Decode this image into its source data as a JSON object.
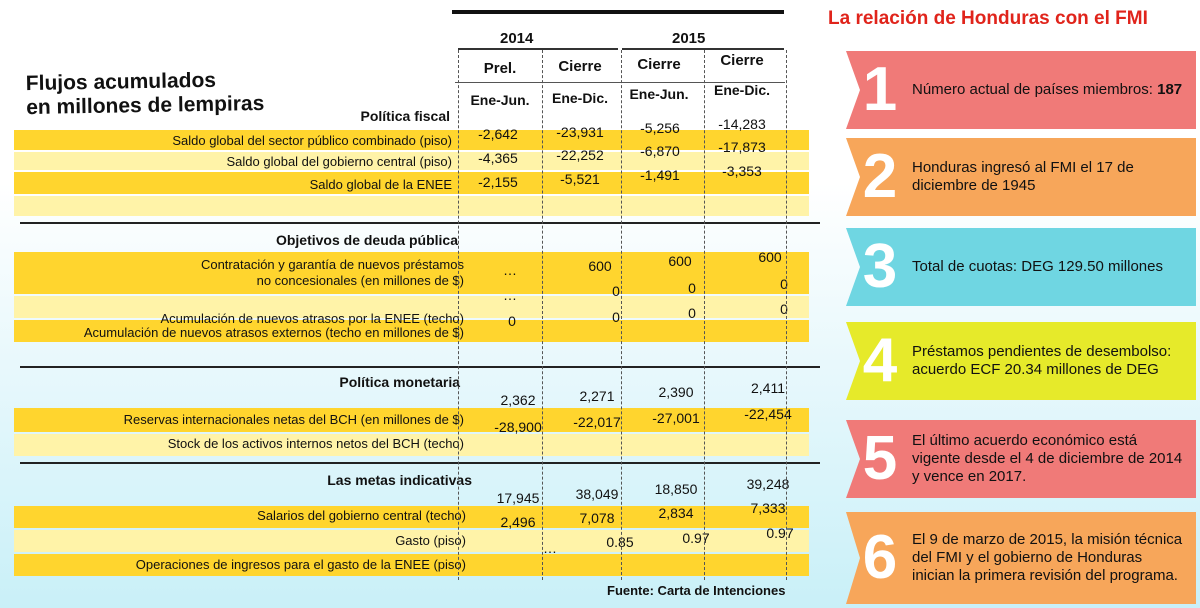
{
  "table": {
    "title_line1": "Flujos acumulados",
    "title_line2": "en millones de lempiras",
    "years": [
      "2014",
      "2015"
    ],
    "col_heads": [
      "Prel.",
      "Cierre",
      "Cierre",
      "Cierre"
    ],
    "col_subs": [
      "Ene-Jun.",
      "Ene-Dic.",
      "Ene-Jun.",
      "Ene-Dic."
    ],
    "sections": [
      {
        "title": "Política fiscal",
        "rows": [
          {
            "label": "Saldo global del sector público combinado (piso)",
            "values": [
              "-2,642",
              "-23,931",
              "-5,256",
              "-14,283"
            ]
          },
          {
            "label": "Saldo global del gobierno central (piso)",
            "values": [
              "-4,365",
              "-22,252",
              "-6,870",
              "-17,873"
            ]
          },
          {
            "label": "Saldo global de la ENEE",
            "values": [
              "-2,155",
              "-5,521",
              "-1,491",
              "-3,353"
            ]
          }
        ]
      },
      {
        "title": "Objetivos de deuda pública",
        "rows": [
          {
            "label_line1": "Contratación y garantía de nuevos préstamos",
            "label_line2": "no concesionales (en millones de $)",
            "values": [
              "…",
              "600",
              "600",
              "600"
            ]
          },
          {
            "label": "Acumulación de nuevos atrasos por la ENEE (techo)",
            "values": [
              "…",
              "0",
              "0",
              "0"
            ]
          },
          {
            "label": "Acumulación de nuevos atrasos externos (techo en millones de $)",
            "values": [
              "0",
              "0",
              "0",
              "0"
            ]
          }
        ]
      },
      {
        "title": "Política monetaria",
        "rows": [
          {
            "label": "Reservas internacionales netas del BCH (en millones de $)",
            "values": [
              "2,362",
              "2,271",
              "2,390",
              "2,411"
            ]
          },
          {
            "label": "Stock de los activos internos netos del BCH (techo)",
            "values": [
              "-28,900",
              "-22,017",
              "-27,001",
              "-22,454"
            ]
          }
        ]
      },
      {
        "title": "Las metas indicativas",
        "rows": [
          {
            "label": "Salarios del gobierno central (techo)",
            "values": [
              "17,945",
              "38,049",
              "18,850",
              "39,248"
            ]
          },
          {
            "label": "Gasto (piso)",
            "values": [
              "2,496",
              "7,078",
              "2,834",
              "7,333"
            ]
          },
          {
            "label": "Operaciones de ingresos para el gasto de la ENEE (piso)",
            "values": [
              "…",
              "0.85",
              "0.97",
              "0.97"
            ]
          }
        ]
      }
    ],
    "source": "Fuente: Carta de Intenciones"
  },
  "panel": {
    "title": "La relación de Honduras con el FMI",
    "cards": [
      {
        "number": "1",
        "text": "Número actual de países miembros: ",
        "bold": "187",
        "color": "#f07a78"
      },
      {
        "number": "2",
        "text": "Honduras ingresó al FMI el 17 de diciembre de 1945",
        "bold": "",
        "color": "#f7a65a"
      },
      {
        "number": "3",
        "text": "Total de cuotas: DEG 129.50 millones",
        "bold": "",
        "color": "#6fd6e2"
      },
      {
        "number": "4",
        "text": "Préstamos pendientes de desembolso: acuerdo ECF 20.34 millones de DEG",
        "bold": "",
        "color": "#e6ea2a"
      },
      {
        "number": "5",
        "text": "El último acuerdo económico está vigente desde el 4 de diciembre de 2014 y vence en 2017.",
        "bold": "",
        "color": "#f07a78"
      },
      {
        "number": "6",
        "text": "El 9 de marzo de 2015, la misión técnica del FMI y el gobierno de Honduras inician la primera revisión del programa.",
        "bold": "",
        "color": "#f7a65a"
      }
    ]
  }
}
